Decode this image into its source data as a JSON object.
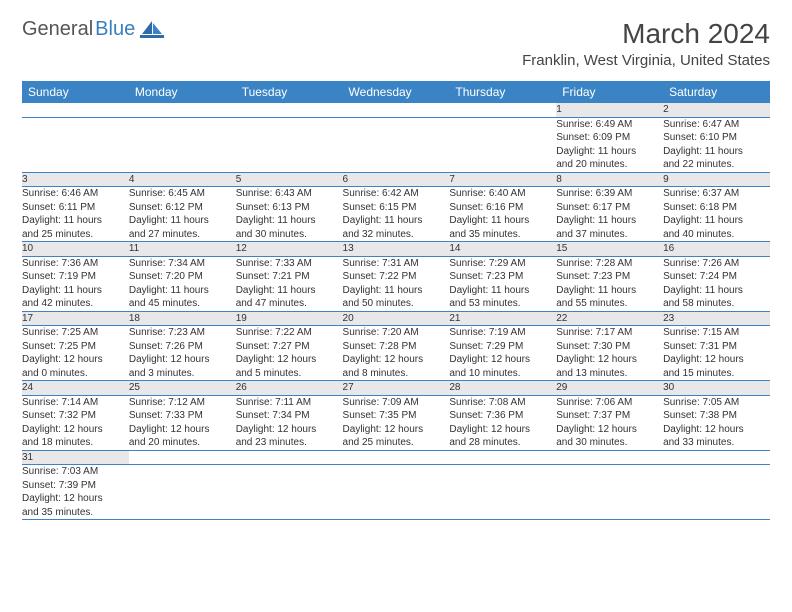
{
  "logo": {
    "text1": "General",
    "text2": "Blue",
    "sail_color": "#2f6aa8",
    "hull_color": "#2f6aa8"
  },
  "title": "March 2024",
  "location": "Franklin, West Virginia, United States",
  "header_bg": "#3a84c5",
  "header_text": "#ffffff",
  "daynum_bg": "#e8e8e8",
  "border_color": "#3a84c5",
  "weekdays": [
    "Sunday",
    "Monday",
    "Tuesday",
    "Wednesday",
    "Thursday",
    "Friday",
    "Saturday"
  ],
  "weeks": [
    [
      null,
      null,
      null,
      null,
      null,
      {
        "n": "1",
        "sr": "6:49 AM",
        "ss": "6:09 PM",
        "dl1": "11 hours",
        "dl2": "and 20 minutes."
      },
      {
        "n": "2",
        "sr": "6:47 AM",
        "ss": "6:10 PM",
        "dl1": "11 hours",
        "dl2": "and 22 minutes."
      }
    ],
    [
      {
        "n": "3",
        "sr": "6:46 AM",
        "ss": "6:11 PM",
        "dl1": "11 hours",
        "dl2": "and 25 minutes."
      },
      {
        "n": "4",
        "sr": "6:45 AM",
        "ss": "6:12 PM",
        "dl1": "11 hours",
        "dl2": "and 27 minutes."
      },
      {
        "n": "5",
        "sr": "6:43 AM",
        "ss": "6:13 PM",
        "dl1": "11 hours",
        "dl2": "and 30 minutes."
      },
      {
        "n": "6",
        "sr": "6:42 AM",
        "ss": "6:15 PM",
        "dl1": "11 hours",
        "dl2": "and 32 minutes."
      },
      {
        "n": "7",
        "sr": "6:40 AM",
        "ss": "6:16 PM",
        "dl1": "11 hours",
        "dl2": "and 35 minutes."
      },
      {
        "n": "8",
        "sr": "6:39 AM",
        "ss": "6:17 PM",
        "dl1": "11 hours",
        "dl2": "and 37 minutes."
      },
      {
        "n": "9",
        "sr": "6:37 AM",
        "ss": "6:18 PM",
        "dl1": "11 hours",
        "dl2": "and 40 minutes."
      }
    ],
    [
      {
        "n": "10",
        "sr": "7:36 AM",
        "ss": "7:19 PM",
        "dl1": "11 hours",
        "dl2": "and 42 minutes."
      },
      {
        "n": "11",
        "sr": "7:34 AM",
        "ss": "7:20 PM",
        "dl1": "11 hours",
        "dl2": "and 45 minutes."
      },
      {
        "n": "12",
        "sr": "7:33 AM",
        "ss": "7:21 PM",
        "dl1": "11 hours",
        "dl2": "and 47 minutes."
      },
      {
        "n": "13",
        "sr": "7:31 AM",
        "ss": "7:22 PM",
        "dl1": "11 hours",
        "dl2": "and 50 minutes."
      },
      {
        "n": "14",
        "sr": "7:29 AM",
        "ss": "7:23 PM",
        "dl1": "11 hours",
        "dl2": "and 53 minutes."
      },
      {
        "n": "15",
        "sr": "7:28 AM",
        "ss": "7:23 PM",
        "dl1": "11 hours",
        "dl2": "and 55 minutes."
      },
      {
        "n": "16",
        "sr": "7:26 AM",
        "ss": "7:24 PM",
        "dl1": "11 hours",
        "dl2": "and 58 minutes."
      }
    ],
    [
      {
        "n": "17",
        "sr": "7:25 AM",
        "ss": "7:25 PM",
        "dl1": "12 hours",
        "dl2": "and 0 minutes."
      },
      {
        "n": "18",
        "sr": "7:23 AM",
        "ss": "7:26 PM",
        "dl1": "12 hours",
        "dl2": "and 3 minutes."
      },
      {
        "n": "19",
        "sr": "7:22 AM",
        "ss": "7:27 PM",
        "dl1": "12 hours",
        "dl2": "and 5 minutes."
      },
      {
        "n": "20",
        "sr": "7:20 AM",
        "ss": "7:28 PM",
        "dl1": "12 hours",
        "dl2": "and 8 minutes."
      },
      {
        "n": "21",
        "sr": "7:19 AM",
        "ss": "7:29 PM",
        "dl1": "12 hours",
        "dl2": "and 10 minutes."
      },
      {
        "n": "22",
        "sr": "7:17 AM",
        "ss": "7:30 PM",
        "dl1": "12 hours",
        "dl2": "and 13 minutes."
      },
      {
        "n": "23",
        "sr": "7:15 AM",
        "ss": "7:31 PM",
        "dl1": "12 hours",
        "dl2": "and 15 minutes."
      }
    ],
    [
      {
        "n": "24",
        "sr": "7:14 AM",
        "ss": "7:32 PM",
        "dl1": "12 hours",
        "dl2": "and 18 minutes."
      },
      {
        "n": "25",
        "sr": "7:12 AM",
        "ss": "7:33 PM",
        "dl1": "12 hours",
        "dl2": "and 20 minutes."
      },
      {
        "n": "26",
        "sr": "7:11 AM",
        "ss": "7:34 PM",
        "dl1": "12 hours",
        "dl2": "and 23 minutes."
      },
      {
        "n": "27",
        "sr": "7:09 AM",
        "ss": "7:35 PM",
        "dl1": "12 hours",
        "dl2": "and 25 minutes."
      },
      {
        "n": "28",
        "sr": "7:08 AM",
        "ss": "7:36 PM",
        "dl1": "12 hours",
        "dl2": "and 28 minutes."
      },
      {
        "n": "29",
        "sr": "7:06 AM",
        "ss": "7:37 PM",
        "dl1": "12 hours",
        "dl2": "and 30 minutes."
      },
      {
        "n": "30",
        "sr": "7:05 AM",
        "ss": "7:38 PM",
        "dl1": "12 hours",
        "dl2": "and 33 minutes."
      }
    ],
    [
      {
        "n": "31",
        "sr": "7:03 AM",
        "ss": "7:39 PM",
        "dl1": "12 hours",
        "dl2": "and 35 minutes."
      },
      null,
      null,
      null,
      null,
      null,
      null
    ]
  ],
  "labels": {
    "sunrise": "Sunrise: ",
    "sunset": "Sunset: ",
    "daylight": "Daylight: "
  }
}
